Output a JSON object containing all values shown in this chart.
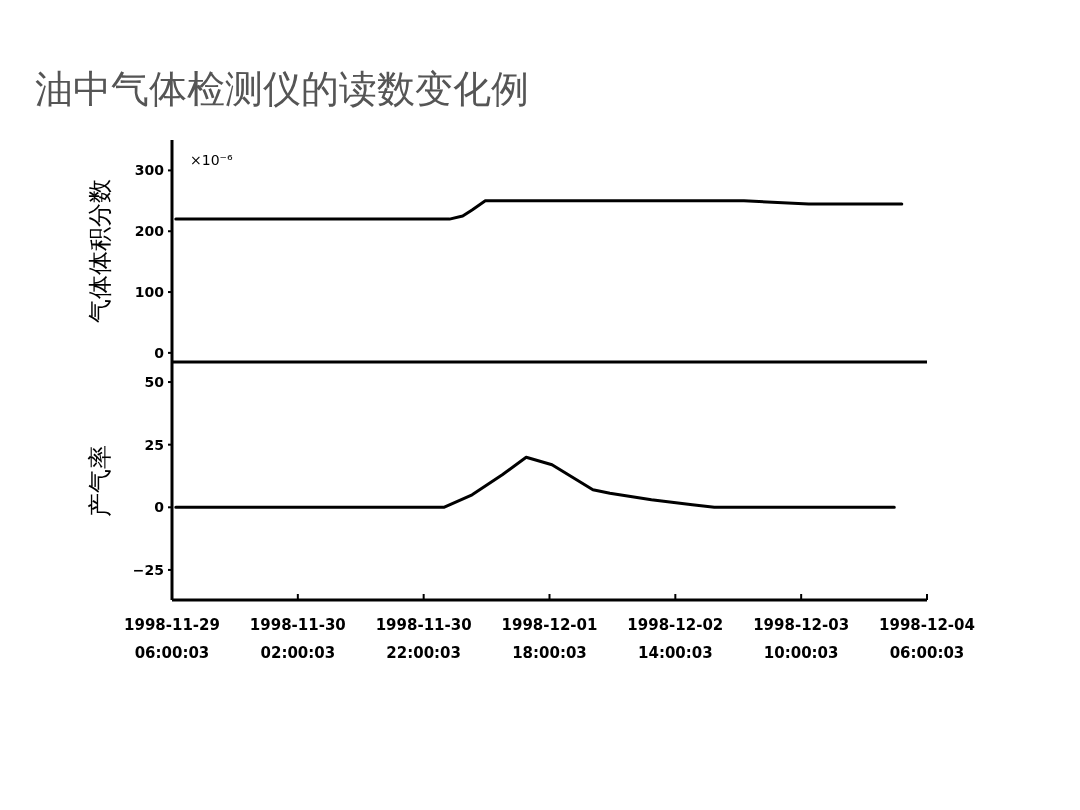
{
  "chart_data": [
    {
      "type": "line",
      "title": "油中气体检测仪的读数变化例",
      "ylabel": "气体体积分数",
      "annotations": [
        "×10⁻⁶"
      ],
      "xlim": [
        "1998-11-29T06:00",
        "1998-12-04T06:00"
      ],
      "ylim": [
        -15,
        350
      ],
      "yticks": [
        0,
        100,
        200,
        300
      ],
      "tick_labels": "y",
      "series": [
        {
          "color": "#000000",
          "x": [
            "1998-11-29T06:36",
            "1998-12-01T02:06",
            "1998-12-01T04:12",
            "1998-12-01T05:42",
            "1998-12-01T07:48",
            "1998-12-03T00:54",
            "1998-12-03T11:12",
            "1998-12-04T02:00"
          ],
          "values": [
            220,
            220,
            225,
            235,
            250,
            250,
            245,
            245
          ]
        }
      ]
    },
    {
      "type": "line",
      "ylabel": "产气率",
      "xlim": [
        "1998-11-29T06:00",
        "1998-12-04T06:00"
      ],
      "ylim": [
        -37,
        58
      ],
      "yticks": [
        -25,
        0,
        25,
        50
      ],
      "xticks": [
        {
          "value": "1998-11-29T06:00",
          "label": "1998-11-29\n06:00:03"
        },
        {
          "value": "1998-11-30T02:00",
          "label": "1998-11-30\n02:00:03"
        },
        {
          "value": "1998-11-30T22:00",
          "label": "1998-11-30\n22:00:03"
        },
        {
          "value": "1998-12-01T18:00",
          "label": "1998-12-01\n18:00:03"
        },
        {
          "value": "1998-12-02T14:00",
          "label": "1998-12-02\n14:00:03"
        },
        {
          "value": "1998-12-03T10:00",
          "label": "1998-12-03\n10:00:03"
        },
        {
          "value": "1998-12-04T06:00",
          "label": "1998-12-04\n06:00:03"
        }
      ],
      "series": [
        {
          "color": "#000000",
          "x": [
            "1998-11-29T06:36",
            "1998-12-01T01:12",
            "1998-12-01T05:42",
            "1998-12-01T10:30",
            "1998-12-01T14:18",
            "1998-12-01T18:24",
            "1998-12-02T00:54",
            "1998-12-02T03:36",
            "1998-12-02T10:12",
            "1998-12-02T16:42",
            "1998-12-02T20:12",
            "1998-12-04T00:48"
          ],
          "values": [
            0,
            0,
            5,
            13,
            20,
            17,
            7,
            5.6,
            3,
            1,
            0,
            0
          ]
        }
      ]
    }
  ]
}
